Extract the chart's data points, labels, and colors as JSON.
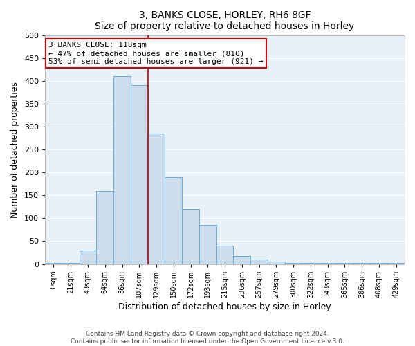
{
  "title": "3, BANKS CLOSE, HORLEY, RH6 8GF",
  "subtitle": "Size of property relative to detached houses in Horley",
  "xlabel": "Distribution of detached houses by size in Horley",
  "ylabel": "Number of detached properties",
  "bar_labels": [
    "0sqm",
    "21sqm",
    "43sqm",
    "64sqm",
    "86sqm",
    "107sqm",
    "129sqm",
    "150sqm",
    "172sqm",
    "193sqm",
    "215sqm",
    "236sqm",
    "257sqm",
    "279sqm",
    "300sqm",
    "322sqm",
    "343sqm",
    "365sqm",
    "386sqm",
    "408sqm",
    "429sqm"
  ],
  "bar_heights": [
    2,
    2,
    30,
    160,
    410,
    390,
    285,
    190,
    120,
    85,
    40,
    18,
    10,
    5,
    2,
    2,
    2,
    2,
    2,
    2,
    2
  ],
  "bar_color": "#ccdded",
  "bar_edge_color": "#6aaed6",
  "bar_width": 1.0,
  "vline_x": 5.5,
  "vline_color": "#cc0000",
  "annotation_line1": "3 BANKS CLOSE: 118sqm",
  "annotation_line2": "← 47% of detached houses are smaller (810)",
  "annotation_line3": "53% of semi-detached houses are larger (921) →",
  "annotation_box_color": "#ffffff",
  "annotation_box_edge": "#cc0000",
  "ylim": [
    0,
    500
  ],
  "yticks": [
    0,
    50,
    100,
    150,
    200,
    250,
    300,
    350,
    400,
    450,
    500
  ],
  "footer_line1": "Contains HM Land Registry data © Crown copyright and database right 2024.",
  "footer_line2": "Contains public sector information licensed under the Open Government Licence v.3.0.",
  "bg_color": "#ffffff",
  "plot_bg_color": "#e8f0f8",
  "grid_color": "#ffffff"
}
